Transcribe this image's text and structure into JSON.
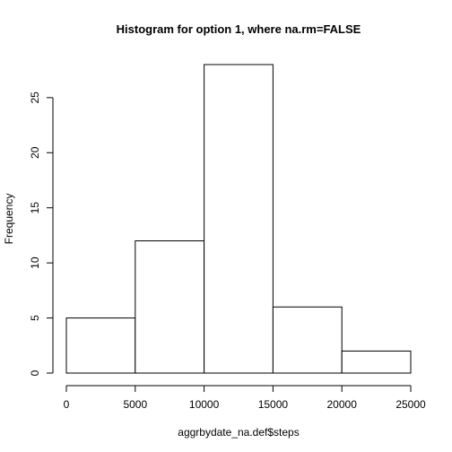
{
  "chart_data": {
    "type": "bar",
    "title": "Histogram for option 1, where na.rm=FALSE",
    "xlabel": "aggrbydate_na.def$steps",
    "ylabel": "Frequency",
    "bins": [
      {
        "start": 0,
        "end": 5000,
        "count": 5
      },
      {
        "start": 5000,
        "end": 10000,
        "count": 12
      },
      {
        "start": 10000,
        "end": 15000,
        "count": 28
      },
      {
        "start": 15000,
        "end": 20000,
        "count": 6
      },
      {
        "start": 20000,
        "end": 25000,
        "count": 2
      }
    ],
    "xlim": [
      0,
      25000
    ],
    "ylim": [
      0,
      28
    ],
    "xticks": [
      0,
      5000,
      10000,
      15000,
      20000,
      25000
    ],
    "yticks": [
      0,
      5,
      10,
      15,
      20,
      25
    ],
    "grid": false,
    "legend": "none"
  }
}
